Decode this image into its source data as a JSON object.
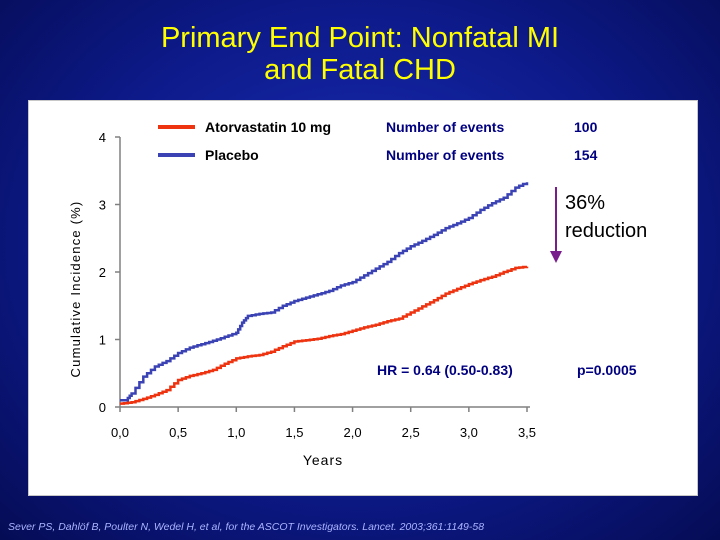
{
  "title": {
    "line1": "Primary End Point: Nonfatal MI",
    "line2": "and Fatal CHD"
  },
  "citation": "Sever PS, Dahlöf B, Poulter N, Wedel H, et al, for the ASCOT Investigators. Lancet. 2003;361:1149-58",
  "colors": {
    "background": "#0d1a8a",
    "title": "#ffff00",
    "atorvastatin": "#ee3311",
    "placebo": "#3b43b4",
    "arrow": "#7a1d8c",
    "stats_text": "#000080"
  },
  "chart_data": {
    "type": "line",
    "xlabel": "Years",
    "ylabel": "Cumulative Incidence (%)",
    "xlim": [
      0,
      3.5
    ],
    "ylim": [
      0,
      4
    ],
    "x_ticks": [
      "0,0",
      "0,5",
      "1,0",
      "1,5",
      "2,0",
      "2,5",
      "3,0",
      "3,5"
    ],
    "y_ticks": [
      "0",
      "1",
      "2",
      "3",
      "4"
    ],
    "grid": false,
    "legend_placement": "top",
    "events_label": "Number of events",
    "series": [
      {
        "name": "Atorvastatin 10 mg",
        "events": "100",
        "color": "#ee3311",
        "x": [
          0,
          0.1,
          0.2,
          0.3,
          0.4,
          0.5,
          0.6,
          0.7,
          0.8,
          0.9,
          1.0,
          1.1,
          1.2,
          1.3,
          1.4,
          1.5,
          1.6,
          1.7,
          1.8,
          1.9,
          2.0,
          2.1,
          2.2,
          2.3,
          2.4,
          2.5,
          2.6,
          2.7,
          2.8,
          2.9,
          3.0,
          3.1,
          3.2,
          3.3,
          3.4,
          3.5
        ],
        "y": [
          0.05,
          0.07,
          0.12,
          0.18,
          0.25,
          0.4,
          0.46,
          0.5,
          0.55,
          0.64,
          0.72,
          0.75,
          0.77,
          0.82,
          0.9,
          0.97,
          0.99,
          1.01,
          1.05,
          1.08,
          1.13,
          1.18,
          1.22,
          1.27,
          1.31,
          1.4,
          1.49,
          1.58,
          1.68,
          1.75,
          1.82,
          1.88,
          1.93,
          2.0,
          2.06,
          2.08
        ]
      },
      {
        "name": "Placebo",
        "events": "154",
        "color": "#3b43b4",
        "x": [
          0,
          0.05,
          0.1,
          0.2,
          0.3,
          0.4,
          0.5,
          0.6,
          0.7,
          0.8,
          0.9,
          1.0,
          1.05,
          1.1,
          1.2,
          1.3,
          1.4,
          1.5,
          1.6,
          1.7,
          1.8,
          1.9,
          2.0,
          2.1,
          2.2,
          2.3,
          2.4,
          2.5,
          2.6,
          2.7,
          2.8,
          2.9,
          3.0,
          3.1,
          3.2,
          3.3,
          3.4,
          3.5
        ],
        "y": [
          0.1,
          0.1,
          0.2,
          0.45,
          0.6,
          0.68,
          0.8,
          0.88,
          0.93,
          0.98,
          1.04,
          1.1,
          1.25,
          1.35,
          1.38,
          1.4,
          1.5,
          1.57,
          1.62,
          1.67,
          1.72,
          1.8,
          1.85,
          1.95,
          2.05,
          2.15,
          2.28,
          2.38,
          2.46,
          2.55,
          2.65,
          2.72,
          2.8,
          2.92,
          3.02,
          3.1,
          3.25,
          3.33
        ]
      }
    ],
    "annotations": {
      "reduction": [
        "36%",
        "reduction"
      ],
      "hr": "HR = 0.64 (0.50-0.83)",
      "p": "p=0.0005"
    }
  }
}
